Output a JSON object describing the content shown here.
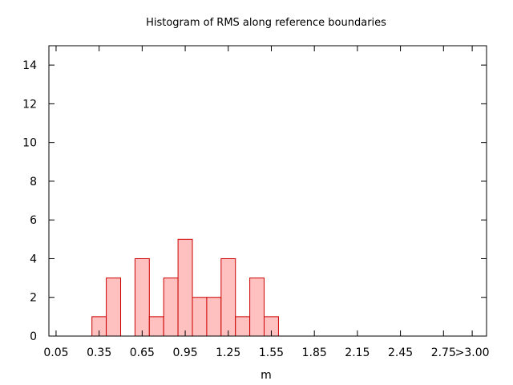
{
  "chart_data": {
    "type": "bar",
    "title": "Histogram of RMS along reference boundaries",
    "xlabel": "m",
    "ylabel": "",
    "bin_width": 0.1,
    "bins": [
      {
        "center": 0.35,
        "count": 1
      },
      {
        "center": 0.45,
        "count": 3
      },
      {
        "center": 0.55,
        "count": 0
      },
      {
        "center": 0.65,
        "count": 4
      },
      {
        "center": 0.75,
        "count": 1
      },
      {
        "center": 0.85,
        "count": 3
      },
      {
        "center": 0.95,
        "count": 5
      },
      {
        "center": 1.05,
        "count": 2
      },
      {
        "center": 1.15,
        "count": 2
      },
      {
        "center": 1.25,
        "count": 4
      },
      {
        "center": 1.35,
        "count": 1
      },
      {
        "center": 1.45,
        "count": 3
      },
      {
        "center": 1.55,
        "count": 1
      }
    ],
    "xlim": [
      0.0,
      3.05
    ],
    "ylim": [
      0,
      15
    ],
    "x_ticks": [
      {
        "value": 0.05,
        "label": "0.05"
      },
      {
        "value": 0.35,
        "label": "0.35"
      },
      {
        "value": 0.65,
        "label": "0.65"
      },
      {
        "value": 0.95,
        "label": "0.95"
      },
      {
        "value": 1.25,
        "label": "1.25"
      },
      {
        "value": 1.55,
        "label": "1.55"
      },
      {
        "value": 1.85,
        "label": "1.85"
      },
      {
        "value": 2.15,
        "label": "2.15"
      },
      {
        "value": 2.45,
        "label": "2.45"
      },
      {
        "value": 2.75,
        "label": "2.75"
      },
      {
        "value": 2.95,
        "label": ">3.00"
      }
    ],
    "y_ticks": [
      {
        "value": 0,
        "label": "0"
      },
      {
        "value": 2,
        "label": "2"
      },
      {
        "value": 4,
        "label": "4"
      },
      {
        "value": 6,
        "label": "6"
      },
      {
        "value": 8,
        "label": "8"
      },
      {
        "value": 10,
        "label": "10"
      },
      {
        "value": 12,
        "label": "12"
      },
      {
        "value": 14,
        "label": "14"
      }
    ],
    "grid": false,
    "colors": {
      "bar_fill": "#ffc0c0",
      "bar_stroke": "#cc0000",
      "axis": "#000000"
    }
  }
}
